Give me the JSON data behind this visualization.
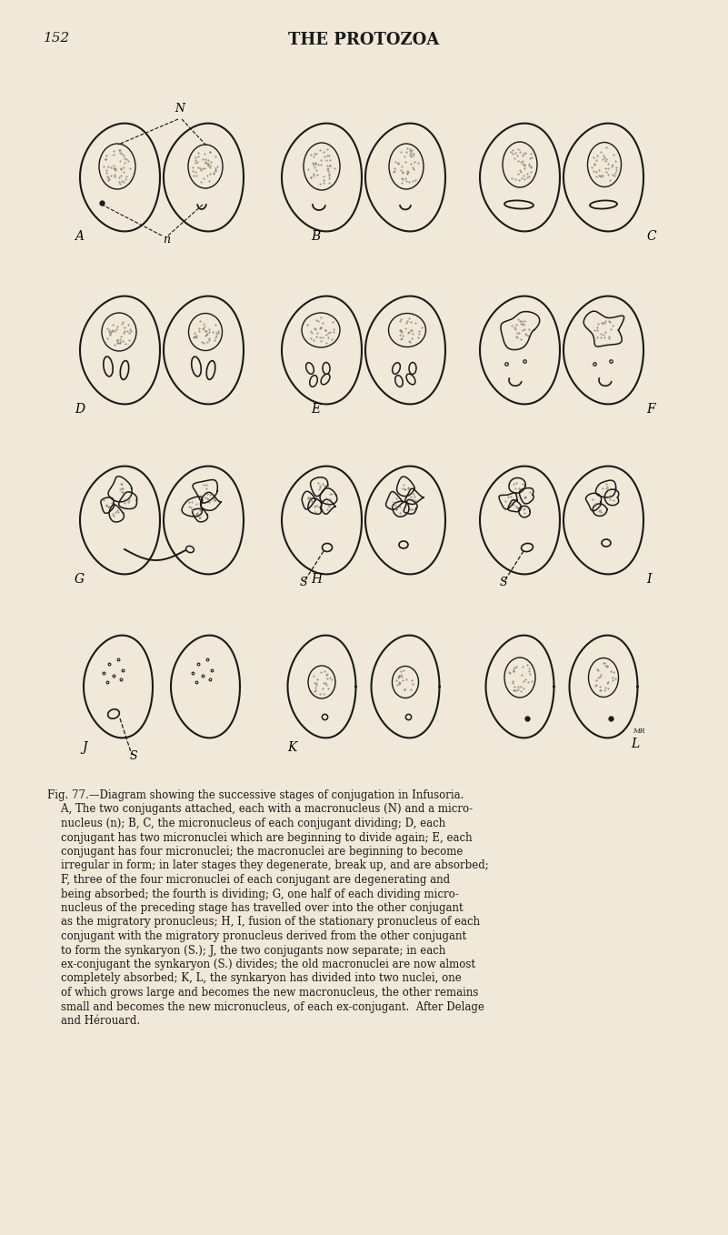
{
  "bg_color": "#f0e8d8",
  "line_color": "#1a1a1a",
  "page_number": "152",
  "page_title": "THE PROTOZOA",
  "caption_line1": "Fig. 77.—Diagram showing the successive stages of conjugation in Infusoria.",
  "caption_line2": "    A, The two conjugants attached, each with a macronucleus (N) and a micro-",
  "caption_line3": "    nucleus (n); B, C, the micronucleus of each conjugant dividing; D, each",
  "caption_line4": "    conjugant has two micronuclei which are beginning to divide again; E, each",
  "caption_line5": "    conjugant has four micronuclei; the macronuclei are beginning to become",
  "caption_line6": "    irregular in form; in later stages they degenerate, break up, and are absorbed;",
  "caption_line7": "    F, three of the four micronuclei of each conjugant are degenerating and",
  "caption_line8": "    being absorbed; the fourth is dividing; G, one half of each dividing micro-",
  "caption_line9": "    nucleus of the preceding stage has travelled over into the other conjugant",
  "caption_line10": "    as the migratory pronucleus; H, I, fusion of the stationary pronucleus of each",
  "caption_line11": "    conjugant with the migratory pronucleus derived from the other conjugant",
  "caption_line12": "    to form the synkaryon (S.); J, the two conjugants now separate; in each",
  "caption_line13": "    ex-conjugant the synkaryon (S.) divides; the old macronuclei are now almost",
  "caption_line14": "    completely absorbed; K, L, the synkaryon has divided into two nuclei, one",
  "caption_line15": "    of which grows large and becomes the new macronucleus, the other remains",
  "caption_line16": "    small and becomes the new micronucleus, of each ex-conjugant.  After Delage",
  "caption_line17": "    and Hérouard."
}
